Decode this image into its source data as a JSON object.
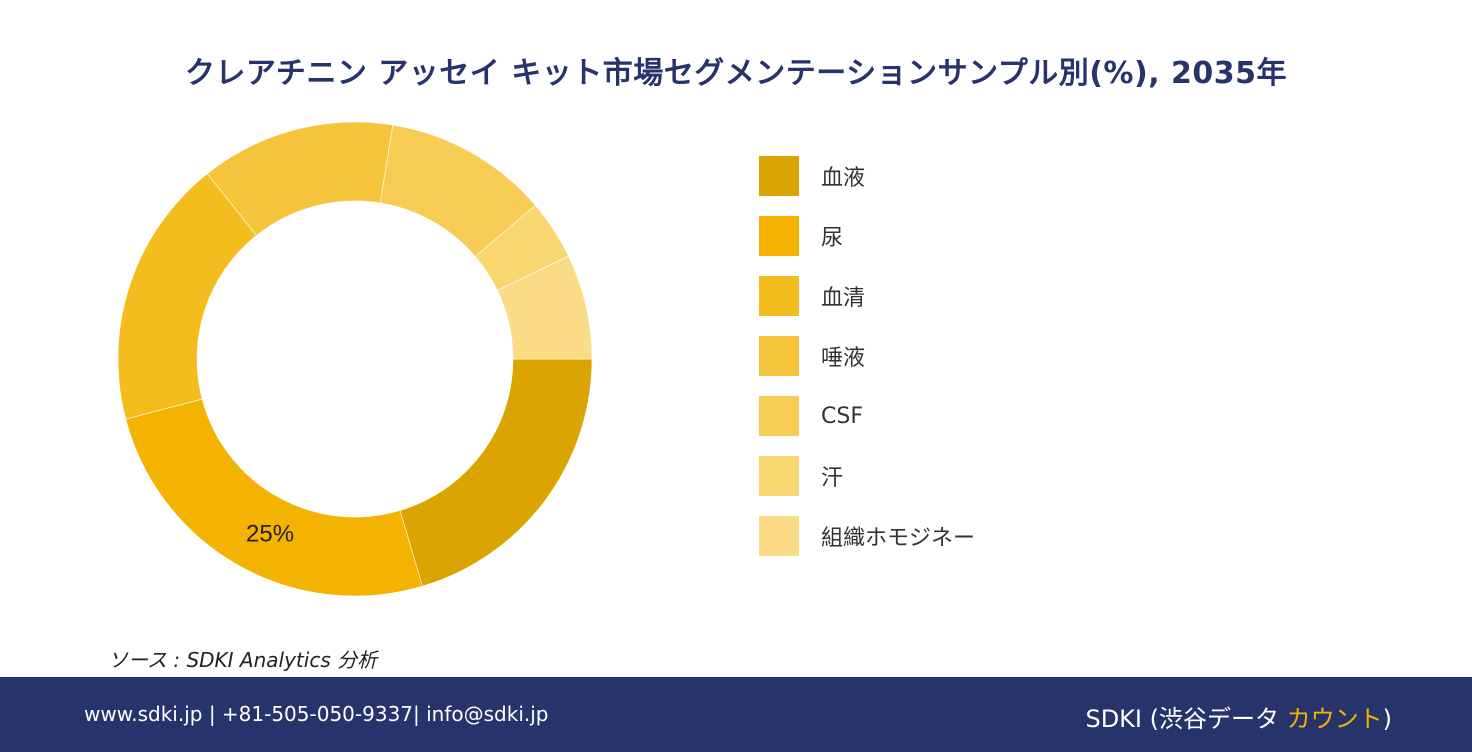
{
  "chart_data": {
    "type": "pie",
    "title": "クレアチニン アッセイ キット市場セグメンテーションサンプル別(%), 2035年",
    "categories": [
      "血液",
      "尿",
      "血清",
      "唾液",
      "CSF",
      "汗",
      "組織ホモジネー"
    ],
    "values": [
      20,
      25,
      18,
      13,
      11,
      4,
      7
    ],
    "colors": [
      "#dba400",
      "#f4b300",
      "#f3bd1e",
      "#f5c43a",
      "#f6cc55",
      "#f8d670",
      "#fadb86"
    ],
    "data_labels": [
      "",
      "25%",
      "",
      "",
      "",
      "",
      ""
    ],
    "legend_position": "right"
  },
  "source": "ソース : SDKI Analytics 分析",
  "footer": {
    "contact": "www.sdki.jp | +81-505-050-9337| info@sdki.jp",
    "brand_prefix": "SDKI (渋谷データ ",
    "brand_accent": "カウント",
    "brand_suffix": ")"
  }
}
